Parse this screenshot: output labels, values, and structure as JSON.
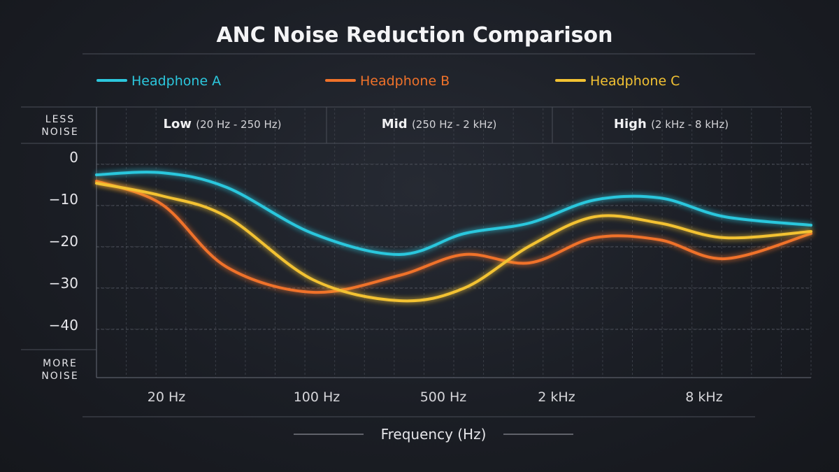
{
  "chart_data": {
    "type": "line",
    "title": "ANC Noise Reduction Comparison",
    "xlabel": "Frequency (Hz)",
    "y_top_label": [
      "LESS",
      "NOISE"
    ],
    "y_bottom_label": [
      "MORE",
      "NOISE"
    ],
    "ylim": [
      -50,
      0
    ],
    "yticks": [
      0,
      -10,
      -20,
      -30,
      -40
    ],
    "x_scale": "log",
    "xlim": [
      10,
      20000
    ],
    "xticks": [
      {
        "value": 20,
        "label": "20 Hz"
      },
      {
        "value": 100,
        "label": "100 Hz"
      },
      {
        "value": 500,
        "label": "500 Hz"
      },
      {
        "value": 2000,
        "label": "2 kHz"
      },
      {
        "value": 8000,
        "label": "8 kHz"
      }
    ],
    "bands": [
      {
        "bold": "Low",
        "range": "(20 Hz - 250 Hz)",
        "from": 10,
        "to": 250
      },
      {
        "bold": "Mid",
        "range": "(250 Hz - 2 kHz)",
        "from": 250,
        "to": 2000
      },
      {
        "bold": "High",
        "range": "(2 kHz - 8 kHz)",
        "from": 2000,
        "to": 20000
      }
    ],
    "grid": true,
    "legend_position": "top",
    "series": [
      {
        "name": "Headphone A",
        "color": "#2cc7dd",
        "x": [
          10,
          20,
          40,
          100,
          250,
          500,
          1000,
          2000,
          4000,
          8000,
          20000
        ],
        "y": [
          -3,
          -2.5,
          -6,
          -17,
          -22,
          -17,
          -14.5,
          -9,
          -8.5,
          -13,
          -15
        ]
      },
      {
        "name": "Headphone B",
        "color": "#f0722a",
        "x": [
          10,
          20,
          40,
          100,
          250,
          500,
          1000,
          2000,
          4000,
          8000,
          20000
        ],
        "y": [
          -4.5,
          -10,
          -25,
          -31,
          -27,
          -22,
          -24,
          -18,
          -18.5,
          -23,
          -17
        ]
      },
      {
        "name": "Headphone C",
        "color": "#f3c233",
        "x": [
          10,
          20,
          40,
          100,
          250,
          500,
          1000,
          2000,
          4000,
          8000,
          20000
        ],
        "y": [
          -5,
          -8,
          -13,
          -28,
          -33,
          -30,
          -20,
          -13,
          -14.5,
          -18,
          -16.5
        ]
      }
    ]
  }
}
